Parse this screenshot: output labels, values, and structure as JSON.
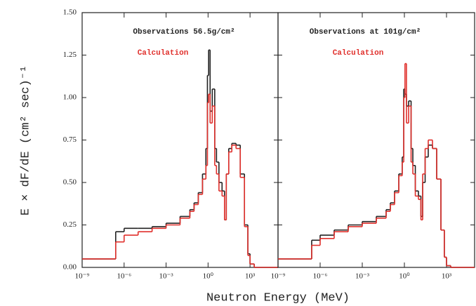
{
  "chart_data": [
    {
      "type": "line",
      "step": true,
      "xscale": "log",
      "xlabel": "Neutron Energy (MeV)",
      "ylabel": "E × dF/dE (cm² sec)⁻¹",
      "xlim": [
        1e-09,
        100000
      ],
      "ylim": [
        0,
        1.5
      ],
      "xticks": [
        {
          "value": 1e-09,
          "label": "10⁻⁹"
        },
        {
          "value": 1e-06,
          "label": "10⁻⁶"
        },
        {
          "value": 0.001,
          "label": "10⁻³"
        },
        {
          "value": 1,
          "label": "10⁰"
        },
        {
          "value": 1000,
          "label": "10³"
        }
      ],
      "yticks": [
        {
          "value": 0,
          "label": "0.00"
        },
        {
          "value": 0.25,
          "label": "0.25"
        },
        {
          "value": 0.5,
          "label": "0.50"
        },
        {
          "value": 0.75,
          "label": "0.75"
        },
        {
          "value": 1,
          "label": "1.00"
        },
        {
          "value": 1.25,
          "label": "1.25"
        },
        {
          "value": 1.5,
          "label": "1.50"
        }
      ],
      "x": [
        1e-09,
        2.5e-07,
        1e-06,
        1e-05,
        0.0001,
        0.001,
        0.01,
        0.05,
        0.1,
        0.2,
        0.4,
        0.7,
        0.9,
        1.1,
        1.4,
        2,
        3,
        4,
        6,
        10,
        15,
        20,
        30,
        50,
        100,
        200,
        400,
        700,
        1000,
        2000
      ],
      "series": [
        {
          "name": "Observations 56.5g/cm²",
          "color": "#222222",
          "values": [
            0.05,
            0.21,
            0.23,
            0.23,
            0.24,
            0.26,
            0.3,
            0.34,
            0.38,
            0.44,
            0.55,
            0.7,
            1.13,
            1.28,
            0.92,
            1.05,
            0.7,
            0.62,
            0.5,
            0.45,
            0.28,
            0.55,
            0.7,
            0.73,
            0.72,
            0.55,
            0.25,
            0.08,
            0.02,
            0
          ]
        },
        {
          "name": "Calculation",
          "color": "#e0302c",
          "values": [
            0.05,
            0.15,
            0.19,
            0.21,
            0.23,
            0.25,
            0.29,
            0.33,
            0.37,
            0.43,
            0.52,
            0.6,
            0.97,
            1.02,
            0.85,
            0.95,
            0.6,
            0.55,
            0.45,
            0.42,
            0.28,
            0.55,
            0.68,
            0.72,
            0.7,
            0.53,
            0.24,
            0.07,
            0.02,
            0
          ]
        }
      ]
    },
    {
      "type": "line",
      "step": true,
      "xscale": "log",
      "xlim": [
        1e-09,
        100000
      ],
      "ylim": [
        0,
        1.5
      ],
      "xticks": [
        {
          "value": 1e-09,
          "label": "10⁻⁹"
        },
        {
          "value": 1e-06,
          "label": "10⁻⁶"
        },
        {
          "value": 0.001,
          "label": "10⁻³"
        },
        {
          "value": 1,
          "label": "10⁰"
        },
        {
          "value": 1000,
          "label": "10³"
        }
      ],
      "yticks": [
        0,
        0.25,
        0.5,
        0.75,
        1,
        1.25,
        1.5
      ],
      "x": [
        1e-09,
        2.5e-07,
        1e-06,
        1e-05,
        0.0001,
        0.001,
        0.01,
        0.05,
        0.1,
        0.2,
        0.4,
        0.7,
        0.9,
        1.1,
        1.4,
        2,
        3,
        4,
        6,
        10,
        15,
        20,
        30,
        50,
        100,
        200,
        400,
        700,
        1000,
        2000
      ],
      "series": [
        {
          "name": "Observations at 101g/cm²",
          "color": "#222222",
          "values": [
            0.05,
            0.16,
            0.19,
            0.22,
            0.25,
            0.27,
            0.3,
            0.34,
            0.38,
            0.45,
            0.55,
            0.65,
            1.05,
            1.02,
            0.95,
            0.98,
            0.7,
            0.6,
            0.45,
            0.42,
            0.3,
            0.5,
            0.65,
            0.72,
            0.7,
            0.52,
            0.22,
            0.06,
            0.01,
            0
          ]
        },
        {
          "name": "Calculation",
          "color": "#e0302c",
          "values": [
            0.05,
            0.13,
            0.17,
            0.21,
            0.24,
            0.26,
            0.29,
            0.33,
            0.37,
            0.44,
            0.54,
            0.62,
            1.0,
            1.2,
            0.85,
            0.95,
            0.62,
            0.55,
            0.42,
            0.4,
            0.28,
            0.55,
            0.7,
            0.75,
            0.7,
            0.52,
            0.22,
            0.06,
            0.01,
            0
          ]
        }
      ]
    }
  ]
}
